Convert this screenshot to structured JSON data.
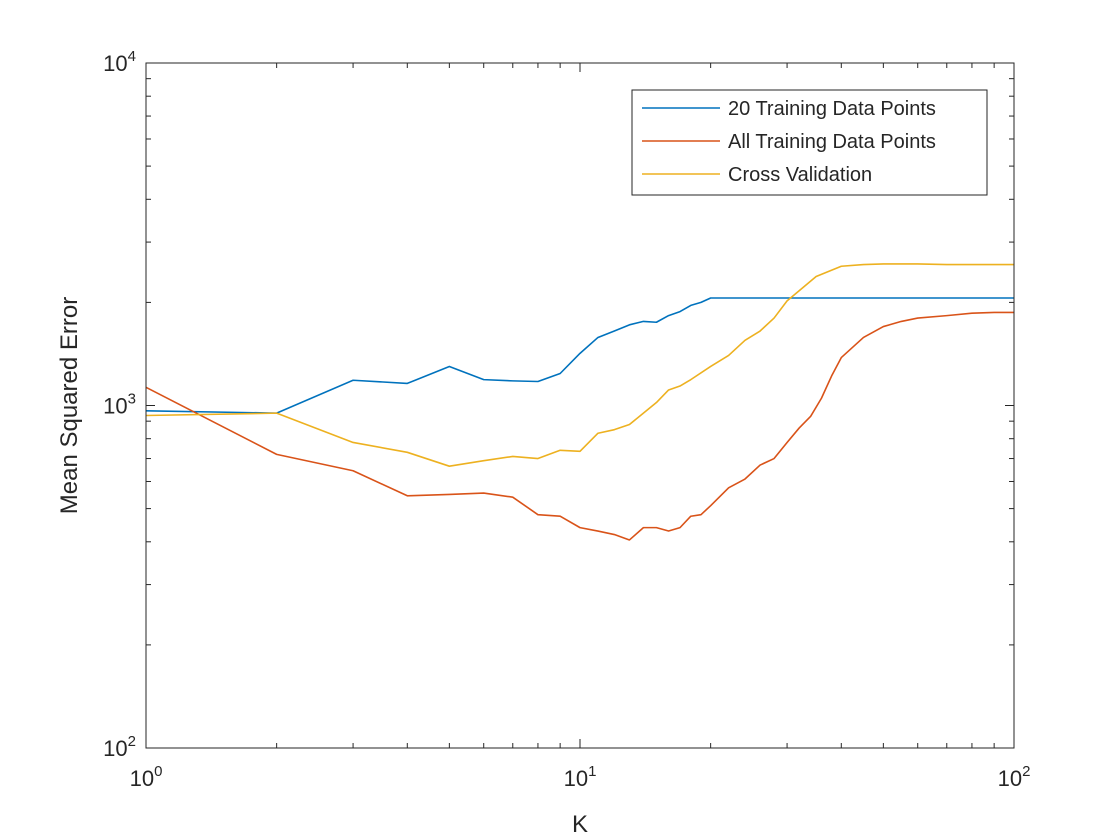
{
  "chart_data": {
    "type": "line",
    "title": "",
    "xlabel": "K",
    "ylabel": "Mean Squared Error",
    "xscale": "log",
    "yscale": "log",
    "xlim": [
      1,
      100
    ],
    "ylim": [
      100,
      10000
    ],
    "x_ticks": [
      {
        "base": "10",
        "exp": "0",
        "value": 1
      },
      {
        "base": "10",
        "exp": "1",
        "value": 10
      },
      {
        "base": "10",
        "exp": "2",
        "value": 100
      }
    ],
    "y_ticks": [
      {
        "base": "10",
        "exp": "2",
        "value": 100
      },
      {
        "base": "10",
        "exp": "3",
        "value": 1000
      },
      {
        "base": "10",
        "exp": "4",
        "value": 10000
      }
    ],
    "grid": false,
    "legend_position": "top-right",
    "series": [
      {
        "name": "20 Training Data Points",
        "color": "#0072BD",
        "points": [
          [
            1,
            965
          ],
          [
            2,
            950
          ],
          [
            3,
            1185
          ],
          [
            4,
            1160
          ],
          [
            5,
            1300
          ],
          [
            6,
            1190
          ],
          [
            7,
            1180
          ],
          [
            8,
            1175
          ],
          [
            9,
            1240
          ],
          [
            10,
            1420
          ],
          [
            11,
            1580
          ],
          [
            12,
            1650
          ],
          [
            13,
            1720
          ],
          [
            14,
            1760
          ],
          [
            15,
            1750
          ],
          [
            16,
            1830
          ],
          [
            17,
            1880
          ],
          [
            18,
            1960
          ],
          [
            19,
            2000
          ],
          [
            20,
            2060
          ],
          [
            30,
            2060
          ],
          [
            40,
            2060
          ],
          [
            50,
            2060
          ],
          [
            60,
            2060
          ],
          [
            70,
            2060
          ],
          [
            80,
            2060
          ],
          [
            90,
            2060
          ],
          [
            100,
            2060
          ]
        ]
      },
      {
        "name": "All Training Data Points",
        "color": "#D95319",
        "points": [
          [
            1,
            1130
          ],
          [
            2,
            720
          ],
          [
            3,
            645
          ],
          [
            4,
            545
          ],
          [
            5,
            550
          ],
          [
            6,
            555
          ],
          [
            7,
            540
          ],
          [
            8,
            480
          ],
          [
            9,
            475
          ],
          [
            10,
            440
          ],
          [
            11,
            430
          ],
          [
            12,
            420
          ],
          [
            13,
            405
          ],
          [
            14,
            440
          ],
          [
            15,
            440
          ],
          [
            16,
            430
          ],
          [
            17,
            440
          ],
          [
            18,
            475
          ],
          [
            19,
            480
          ],
          [
            20,
            510
          ],
          [
            22,
            575
          ],
          [
            24,
            610
          ],
          [
            26,
            670
          ],
          [
            28,
            700
          ],
          [
            30,
            780
          ],
          [
            32,
            860
          ],
          [
            34,
            930
          ],
          [
            36,
            1050
          ],
          [
            38,
            1220
          ],
          [
            40,
            1380
          ],
          [
            45,
            1580
          ],
          [
            50,
            1700
          ],
          [
            55,
            1760
          ],
          [
            60,
            1800
          ],
          [
            70,
            1830
          ],
          [
            80,
            1860
          ],
          [
            90,
            1870
          ],
          [
            100,
            1870
          ]
        ]
      },
      {
        "name": "Cross Validation",
        "color": "#EDB120",
        "points": [
          [
            1,
            935
          ],
          [
            2,
            950
          ],
          [
            3,
            780
          ],
          [
            4,
            730
          ],
          [
            5,
            665
          ],
          [
            6,
            690
          ],
          [
            7,
            710
          ],
          [
            8,
            700
          ],
          [
            9,
            740
          ],
          [
            10,
            735
          ],
          [
            11,
            830
          ],
          [
            12,
            850
          ],
          [
            13,
            880
          ],
          [
            14,
            950
          ],
          [
            15,
            1020
          ],
          [
            16,
            1110
          ],
          [
            17,
            1140
          ],
          [
            18,
            1190
          ],
          [
            20,
            1300
          ],
          [
            22,
            1400
          ],
          [
            24,
            1550
          ],
          [
            26,
            1650
          ],
          [
            28,
            1800
          ],
          [
            30,
            2020
          ],
          [
            35,
            2380
          ],
          [
            40,
            2550
          ],
          [
            45,
            2580
          ],
          [
            50,
            2590
          ],
          [
            60,
            2590
          ],
          [
            70,
            2580
          ],
          [
            80,
            2580
          ],
          [
            90,
            2580
          ],
          [
            100,
            2580
          ]
        ]
      }
    ]
  }
}
